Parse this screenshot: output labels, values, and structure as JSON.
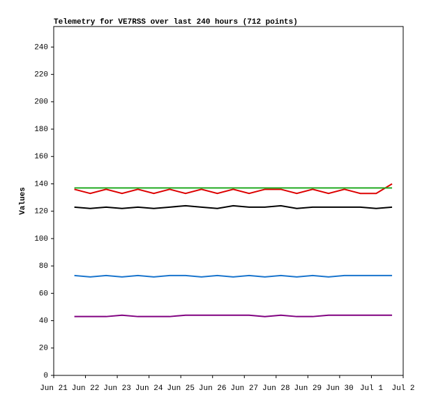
{
  "chart_data": {
    "type": "line",
    "title": "Telemetry for VE7RSS over last 240 hours (712 points)",
    "y_label": "Values",
    "x": [
      0.65,
      1.15,
      1.65,
      2.15,
      2.65,
      3.15,
      3.65,
      4.15,
      4.65,
      5.15,
      5.65,
      6.15,
      6.65,
      7.15,
      7.65,
      8.15,
      8.65,
      9.15,
      9.65,
      10.15,
      10.65
    ],
    "series": [
      {
        "color": "#800080",
        "values": [
          43,
          43,
          43,
          44,
          43,
          43,
          43,
          44,
          44,
          44,
          44,
          44,
          43,
          44,
          43,
          43,
          44,
          44,
          44,
          44,
          44
        ]
      },
      {
        "color": "#1874cd",
        "values": [
          73,
          72,
          73,
          72,
          73,
          72,
          73,
          73,
          72,
          73,
          72,
          73,
          72,
          73,
          72,
          73,
          72,
          73,
          73,
          73,
          73
        ]
      },
      {
        "color": "#000000",
        "values": [
          123,
          122,
          123,
          122,
          123,
          122,
          123,
          124,
          123,
          122,
          124,
          123,
          123,
          124,
          122,
          123,
          123,
          123,
          123,
          122,
          123
        ]
      },
      {
        "color": "#dd0000",
        "values": [
          136,
          133,
          136,
          133,
          136,
          133,
          136,
          133,
          136,
          133,
          136,
          133,
          136,
          136,
          133,
          136,
          133,
          136,
          133,
          133,
          140
        ]
      },
      {
        "color": "#22aa22",
        "values": [
          137,
          137,
          137,
          137,
          137,
          137,
          137,
          137,
          137,
          137,
          137,
          137,
          137,
          137,
          137,
          137,
          137,
          137,
          137,
          137,
          137
        ]
      }
    ],
    "xlim": [
      0,
      11
    ],
    "xticks": [
      {
        "value": 0,
        "label": "Jun 21"
      },
      {
        "value": 1,
        "label": "Jun 22"
      },
      {
        "value": 2,
        "label": "Jun 23"
      },
      {
        "value": 3,
        "label": "Jun 24"
      },
      {
        "value": 4,
        "label": "Jun 25"
      },
      {
        "value": 5,
        "label": "Jun 26"
      },
      {
        "value": 6,
        "label": "Jun 27"
      },
      {
        "value": 7,
        "label": "Jun 28"
      },
      {
        "value": 8,
        "label": "Jun 29"
      },
      {
        "value": 9,
        "label": "Jun 30"
      },
      {
        "value": 10,
        "label": "Jul 1"
      },
      {
        "value": 11,
        "label": "Jul 2"
      }
    ],
    "ylim": [
      0,
      255
    ],
    "yticks": [
      0,
      20,
      40,
      60,
      80,
      100,
      120,
      140,
      160,
      180,
      200,
      220,
      240
    ]
  }
}
